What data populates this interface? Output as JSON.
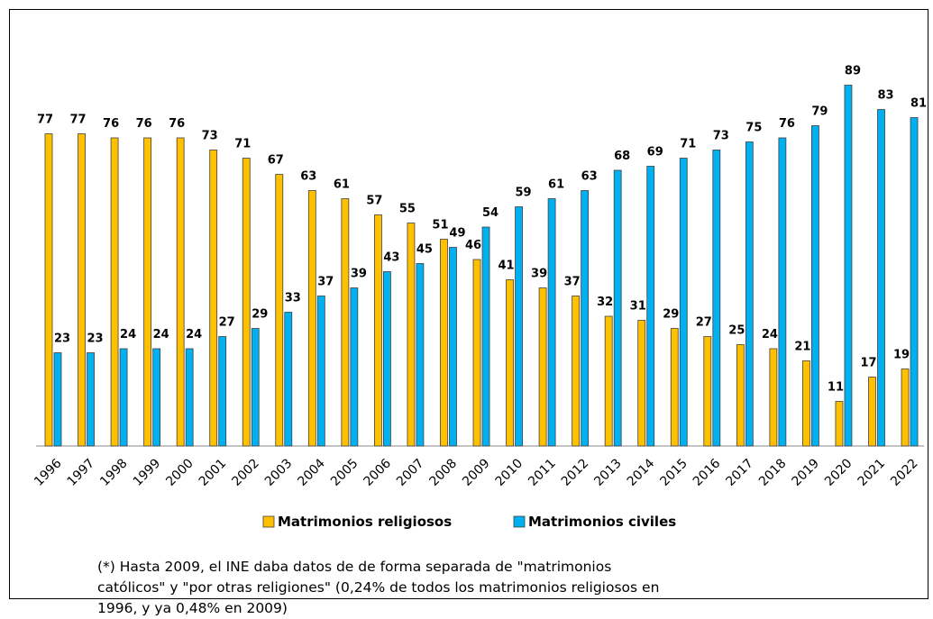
{
  "chart_data": {
    "type": "bar",
    "categories": [
      "1996",
      "1997",
      "1998",
      "1999",
      "2000",
      "2001",
      "2002",
      "2003",
      "2004",
      "2005",
      "2006",
      "2007",
      "2008",
      "2009",
      "2010",
      "2011",
      "2012",
      "2013",
      "2014",
      "2015",
      "2016",
      "2017",
      "2018",
      "2019",
      "2020",
      "2021",
      "2022"
    ],
    "series": [
      {
        "name": "Matrimonios religiosos",
        "color": "#FFC000",
        "values": [
          77,
          77,
          76,
          76,
          76,
          73,
          71,
          67,
          63,
          61,
          57,
          55,
          51,
          46,
          41,
          39,
          37,
          32,
          31,
          29,
          27,
          25,
          24,
          21,
          11,
          17,
          19
        ]
      },
      {
        "name": "Matrimonios civiles",
        "color": "#00B0F0",
        "values": [
          23,
          23,
          24,
          24,
          24,
          27,
          29,
          33,
          37,
          39,
          43,
          45,
          49,
          54,
          59,
          61,
          63,
          68,
          69,
          71,
          73,
          75,
          76,
          79,
          89,
          83,
          81
        ]
      }
    ],
    "legend": "bottom",
    "note": "(*) Hasta 2009, el INE daba datos de de forma separada de \"matrimonios católicos\" y \"por otras religiones\" (0,24% de todos los matrimonios religiosos en 1996, y ya 0,48% en 2009)"
  }
}
